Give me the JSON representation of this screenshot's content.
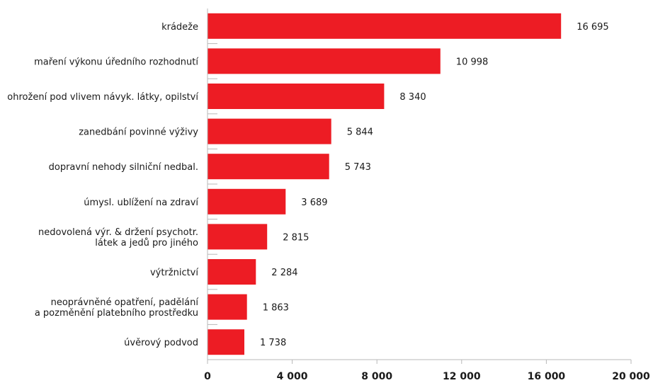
{
  "chart_data": {
    "type": "bar",
    "orientation": "horizontal",
    "categories": [
      [
        "krádeže"
      ],
      [
        "maření výkonu úředního rozhodnutí"
      ],
      [
        "ohrožení pod vlivem návyk. látky, opilství"
      ],
      [
        "zanedbání povinné výživy"
      ],
      [
        "dopravní nehody silniční nedbal."
      ],
      [
        "úmysl. ublížení na zdraví"
      ],
      [
        "nedovolená výr. & držení psychotr.",
        "látek a jedů pro jiného"
      ],
      [
        "výtržnictví"
      ],
      [
        "neoprávněné opatření, padělání",
        "a pozměnění platebního prostředku"
      ],
      [
        "úvěrový podvod"
      ]
    ],
    "values": [
      16695,
      10998,
      8340,
      5844,
      5743,
      3689,
      2815,
      2284,
      1863,
      1738
    ],
    "value_labels": [
      "16 695",
      "10 998",
      "8 340",
      "5 844",
      "5 743",
      "3 689",
      "2 815",
      "2 284",
      "1 863",
      "1 738"
    ],
    "xlim": [
      0,
      20000
    ],
    "ticks": [
      0,
      4000,
      8000,
      12000,
      16000,
      20000
    ],
    "tick_labels": [
      "0",
      "4 000",
      "8 000",
      "12 000",
      "16 000",
      "20 000"
    ],
    "bar_color": "#ed1c24",
    "grid": false,
    "title": "",
    "xlabel": "",
    "ylabel": ""
  }
}
